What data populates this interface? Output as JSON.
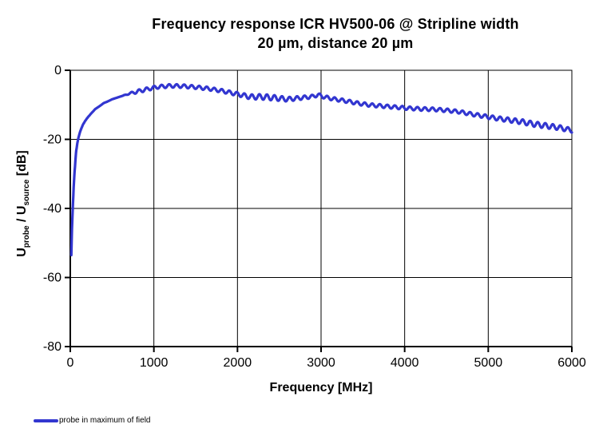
{
  "title": {
    "line1": "Frequency response ICR HV500-06 @ Stripline width",
    "line2": "20 µm, distance 20 µm"
  },
  "y_axis_parts": {
    "u1": "U",
    "sub1": "probe",
    "sep": " / ",
    "u2": "U",
    "sub2": "source",
    "unit": " [dB]"
  },
  "chart_data": {
    "type": "line",
    "title": "Frequency response ICR HV500-06 @ Stripline width 20 µm, distance 20 µm",
    "xlabel": "Frequency [MHz]",
    "ylabel": "U_probe / U_source [dB]",
    "xlim": [
      0,
      6000
    ],
    "ylim": [
      -80,
      0
    ],
    "x_ticks": [
      0,
      1000,
      2000,
      3000,
      4000,
      5000,
      6000
    ],
    "y_ticks": [
      0,
      -20,
      -40,
      -60,
      -80
    ],
    "grid": true,
    "legend_position": "bottom-left",
    "series": [
      {
        "name": "probe in maximum of field",
        "color": "#3236d0",
        "points": [
          [
            12,
            -53.5
          ],
          [
            20,
            -46
          ],
          [
            30,
            -40
          ],
          [
            40,
            -34
          ],
          [
            50,
            -30
          ],
          [
            60,
            -26.5
          ],
          [
            70,
            -23.5
          ],
          [
            85,
            -21
          ],
          [
            100,
            -19.3
          ],
          [
            120,
            -17.6
          ],
          [
            150,
            -15.8
          ],
          [
            180,
            -14.6
          ],
          [
            210,
            -13.6
          ],
          [
            250,
            -12.5
          ],
          [
            300,
            -11.2
          ],
          [
            350,
            -10.4
          ],
          [
            400,
            -9.5
          ],
          [
            450,
            -9.0
          ],
          [
            500,
            -8.4
          ],
          [
            600,
            -7.6
          ],
          [
            700,
            -6.8
          ],
          [
            830,
            -6.0
          ],
          [
            950,
            -5.3
          ],
          [
            1050,
            -4.8
          ],
          [
            1200,
            -4.5
          ],
          [
            1350,
            -4.6
          ],
          [
            1500,
            -4.9
          ],
          [
            1650,
            -5.3
          ],
          [
            1800,
            -5.9
          ],
          [
            2000,
            -6.9
          ],
          [
            2150,
            -7.7
          ],
          [
            2300,
            -7.7
          ],
          [
            2450,
            -8.0
          ],
          [
            2600,
            -8.4
          ],
          [
            2750,
            -8.0
          ],
          [
            2900,
            -7.6
          ],
          [
            2960,
            -7.1
          ],
          [
            3050,
            -7.8
          ],
          [
            3150,
            -8.3
          ],
          [
            3300,
            -8.9
          ],
          [
            3450,
            -9.6
          ],
          [
            3600,
            -10.1
          ],
          [
            3750,
            -10.4
          ],
          [
            3900,
            -10.7
          ],
          [
            4050,
            -11.0
          ],
          [
            4200,
            -11.2
          ],
          [
            4350,
            -11.3
          ],
          [
            4500,
            -11.6
          ],
          [
            4650,
            -12.0
          ],
          [
            4800,
            -12.7
          ],
          [
            4950,
            -13.3
          ],
          [
            5100,
            -13.9
          ],
          [
            5250,
            -14.4
          ],
          [
            5400,
            -14.9
          ],
          [
            5550,
            -15.6
          ],
          [
            5700,
            -16.1
          ],
          [
            5850,
            -16.6
          ],
          [
            6000,
            -17.4
          ]
        ],
        "ripple": {
          "amplitude_db": 0.5,
          "period_mhz": 90,
          "start_mhz": 620
        }
      }
    ]
  }
}
